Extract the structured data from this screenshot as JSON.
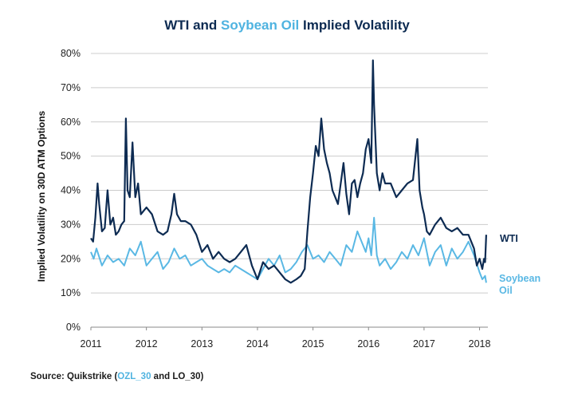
{
  "title": {
    "part1": "WTI and ",
    "part2": "Soybean Oil",
    "part3": " Implied Volatility"
  },
  "source": {
    "prefix": "Source: Quikstrike (",
    "code1": "OZL_30",
    "middle": " and LO_30)"
  },
  "colors": {
    "wti": "#0d2b52",
    "soybean": "#5ab8e4",
    "grid": "#cccccc",
    "title_accent": "#4fb3e0"
  },
  "chart_data": {
    "type": "line",
    "title": "WTI and Soybean Oil Implied Volatility",
    "xlabel": "",
    "ylabel": "Implied Volatility on 30D ATM Options",
    "x_unit": "year",
    "xlim": [
      2011,
      2018.15
    ],
    "ylim": [
      0,
      80
    ],
    "y_ticks": [
      "0%",
      "10%",
      "20%",
      "30%",
      "40%",
      "50%",
      "60%",
      "70%",
      "80%"
    ],
    "x_ticks": [
      "2011",
      "2012",
      "2013",
      "2014",
      "2015",
      "2016",
      "2017",
      "2018"
    ],
    "grid": true,
    "legend": "direct labels at right end of series",
    "series": [
      {
        "name": "WTI",
        "x": [
          2011.0,
          2011.04,
          2011.08,
          2011.12,
          2011.15,
          2011.2,
          2011.25,
          2011.3,
          2011.35,
          2011.4,
          2011.45,
          2011.5,
          2011.55,
          2011.6,
          2011.63,
          2011.66,
          2011.7,
          2011.75,
          2011.8,
          2011.85,
          2011.9,
          2011.95,
          2012.0,
          2012.1,
          2012.2,
          2012.3,
          2012.38,
          2012.45,
          2012.5,
          2012.55,
          2012.62,
          2012.7,
          2012.8,
          2012.9,
          2013.0,
          2013.1,
          2013.2,
          2013.3,
          2013.4,
          2013.5,
          2013.6,
          2013.7,
          2013.8,
          2013.9,
          2014.0,
          2014.1,
          2014.2,
          2014.3,
          2014.4,
          2014.5,
          2014.6,
          2014.7,
          2014.78,
          2014.85,
          2014.9,
          2014.95,
          2015.0,
          2015.05,
          2015.1,
          2015.15,
          2015.2,
          2015.25,
          2015.3,
          2015.35,
          2015.4,
          2015.45,
          2015.5,
          2015.55,
          2015.6,
          2015.65,
          2015.7,
          2015.75,
          2015.8,
          2015.85,
          2015.9,
          2015.95,
          2016.0,
          2016.05,
          2016.08,
          2016.1,
          2016.15,
          2016.2,
          2016.25,
          2016.3,
          2016.4,
          2016.5,
          2016.6,
          2016.7,
          2016.8,
          2016.88,
          2016.92,
          2016.97,
          2017.0,
          2017.05,
          2017.1,
          2017.2,
          2017.3,
          2017.4,
          2017.5,
          2017.6,
          2017.7,
          2017.8,
          2017.9,
          2017.95,
          2018.0,
          2018.05,
          2018.08,
          2018.1,
          2018.12
        ],
        "values": [
          26,
          25,
          32,
          42,
          36,
          28,
          29,
          40,
          30,
          32,
          27,
          28,
          30,
          31,
          61,
          40,
          38,
          54,
          38,
          42,
          33,
          34,
          35,
          33,
          28,
          27,
          28,
          33,
          39,
          33,
          31,
          31,
          30,
          27,
          22,
          24,
          20,
          22,
          20,
          19,
          20,
          22,
          24,
          18,
          14,
          19,
          17,
          18,
          16,
          14,
          13,
          14,
          15,
          17,
          28,
          38,
          45,
          53,
          50,
          61,
          52,
          48,
          45,
          40,
          38,
          36,
          42,
          48,
          39,
          33,
          42,
          43,
          38,
          42,
          45,
          52,
          55,
          48,
          78,
          65,
          45,
          40,
          45,
          42,
          42,
          38,
          40,
          42,
          43,
          55,
          40,
          35,
          33,
          28,
          27,
          30,
          32,
          29,
          28,
          29,
          27,
          27,
          23,
          18,
          20,
          17,
          20,
          19,
          27
        ]
      },
      {
        "name": "Soybean Oil",
        "x": [
          2011.0,
          2011.05,
          2011.1,
          2011.2,
          2011.3,
          2011.4,
          2011.5,
          2011.6,
          2011.7,
          2011.8,
          2011.9,
          2012.0,
          2012.1,
          2012.2,
          2012.3,
          2012.4,
          2012.5,
          2012.6,
          2012.7,
          2012.8,
          2012.9,
          2013.0,
          2013.1,
          2013.2,
          2013.3,
          2013.4,
          2013.5,
          2013.6,
          2013.7,
          2013.8,
          2013.9,
          2014.0,
          2014.1,
          2014.2,
          2014.3,
          2014.4,
          2014.5,
          2014.6,
          2014.7,
          2014.8,
          2014.9,
          2015.0,
          2015.1,
          2015.2,
          2015.3,
          2015.4,
          2015.5,
          2015.6,
          2015.7,
          2015.8,
          2015.9,
          2015.95,
          2016.0,
          2016.05,
          2016.1,
          2016.15,
          2016.2,
          2016.3,
          2016.4,
          2016.5,
          2016.6,
          2016.7,
          2016.8,
          2016.9,
          2017.0,
          2017.1,
          2017.2,
          2017.3,
          2017.4,
          2017.5,
          2017.6,
          2017.7,
          2017.8,
          2017.9,
          2018.0,
          2018.05,
          2018.1,
          2018.12
        ],
        "values": [
          22,
          20,
          23,
          18,
          21,
          19,
          20,
          18,
          23,
          21,
          25,
          18,
          20,
          22,
          17,
          19,
          23,
          20,
          21,
          18,
          19,
          20,
          18,
          17,
          16,
          17,
          16,
          18,
          17,
          16,
          15,
          14,
          17,
          20,
          18,
          21,
          16,
          17,
          19,
          22,
          24,
          20,
          21,
          19,
          22,
          20,
          18,
          24,
          22,
          28,
          24,
          22,
          26,
          21,
          32,
          21,
          18,
          20,
          17,
          19,
          22,
          20,
          24,
          21,
          26,
          18,
          22,
          24,
          18,
          23,
          20,
          22,
          25,
          21,
          16,
          14,
          15,
          13
        ]
      }
    ]
  }
}
